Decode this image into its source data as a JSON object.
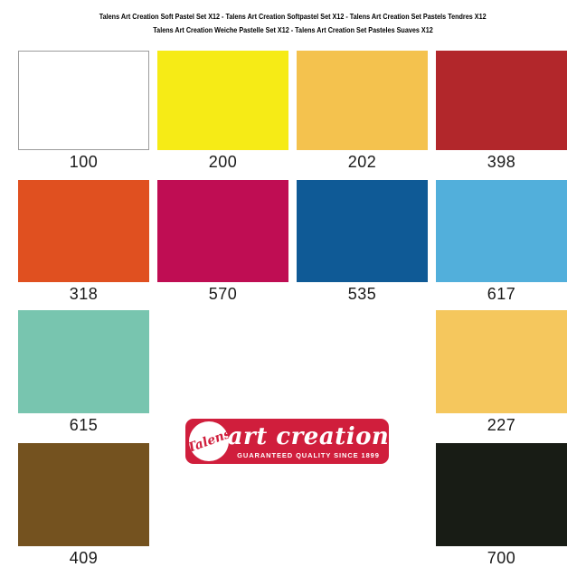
{
  "page": {
    "background_color": "#FFFFFF",
    "label_text_color": "#1A1A1A"
  },
  "header": {
    "line1": "Talens Art Creation Soft Pastel Set X12 - Talens Art Creation Softpastel Set X12 - Talens Art Creation Set Pastels Tendres X12",
    "line2": "Talens Art Creation Weiche Pastelle Set X12 - Talens Art Creation Set Pasteles Suaves X12"
  },
  "swatches": [
    {
      "code": "100",
      "color": "#FFFFFF",
      "border": "#9C9C9C"
    },
    {
      "code": "200",
      "color": "#F6EB16"
    },
    {
      "code": "202",
      "color": "#F4C24E"
    },
    {
      "code": "398",
      "color": "#B2272B"
    },
    {
      "code": "318",
      "color": "#E05020"
    },
    {
      "code": "570",
      "color": "#BF0D53"
    },
    {
      "code": "535",
      "color": "#0F5A96"
    },
    {
      "code": "617",
      "color": "#52AFDB"
    },
    {
      "code": "615",
      "color": "#78C5AF"
    },
    {
      "code": "227",
      "color": "#F5C75D"
    },
    {
      "code": "409",
      "color": "#74521F"
    },
    {
      "code": "700",
      "color": "#181C15"
    }
  ],
  "logo": {
    "brand_script": "Talens",
    "title_script": "art creation",
    "tagline": "GUARANTEED QUALITY SINCE 1899",
    "background_color": "#D01E3C",
    "text_color": "#FFFFFF"
  }
}
